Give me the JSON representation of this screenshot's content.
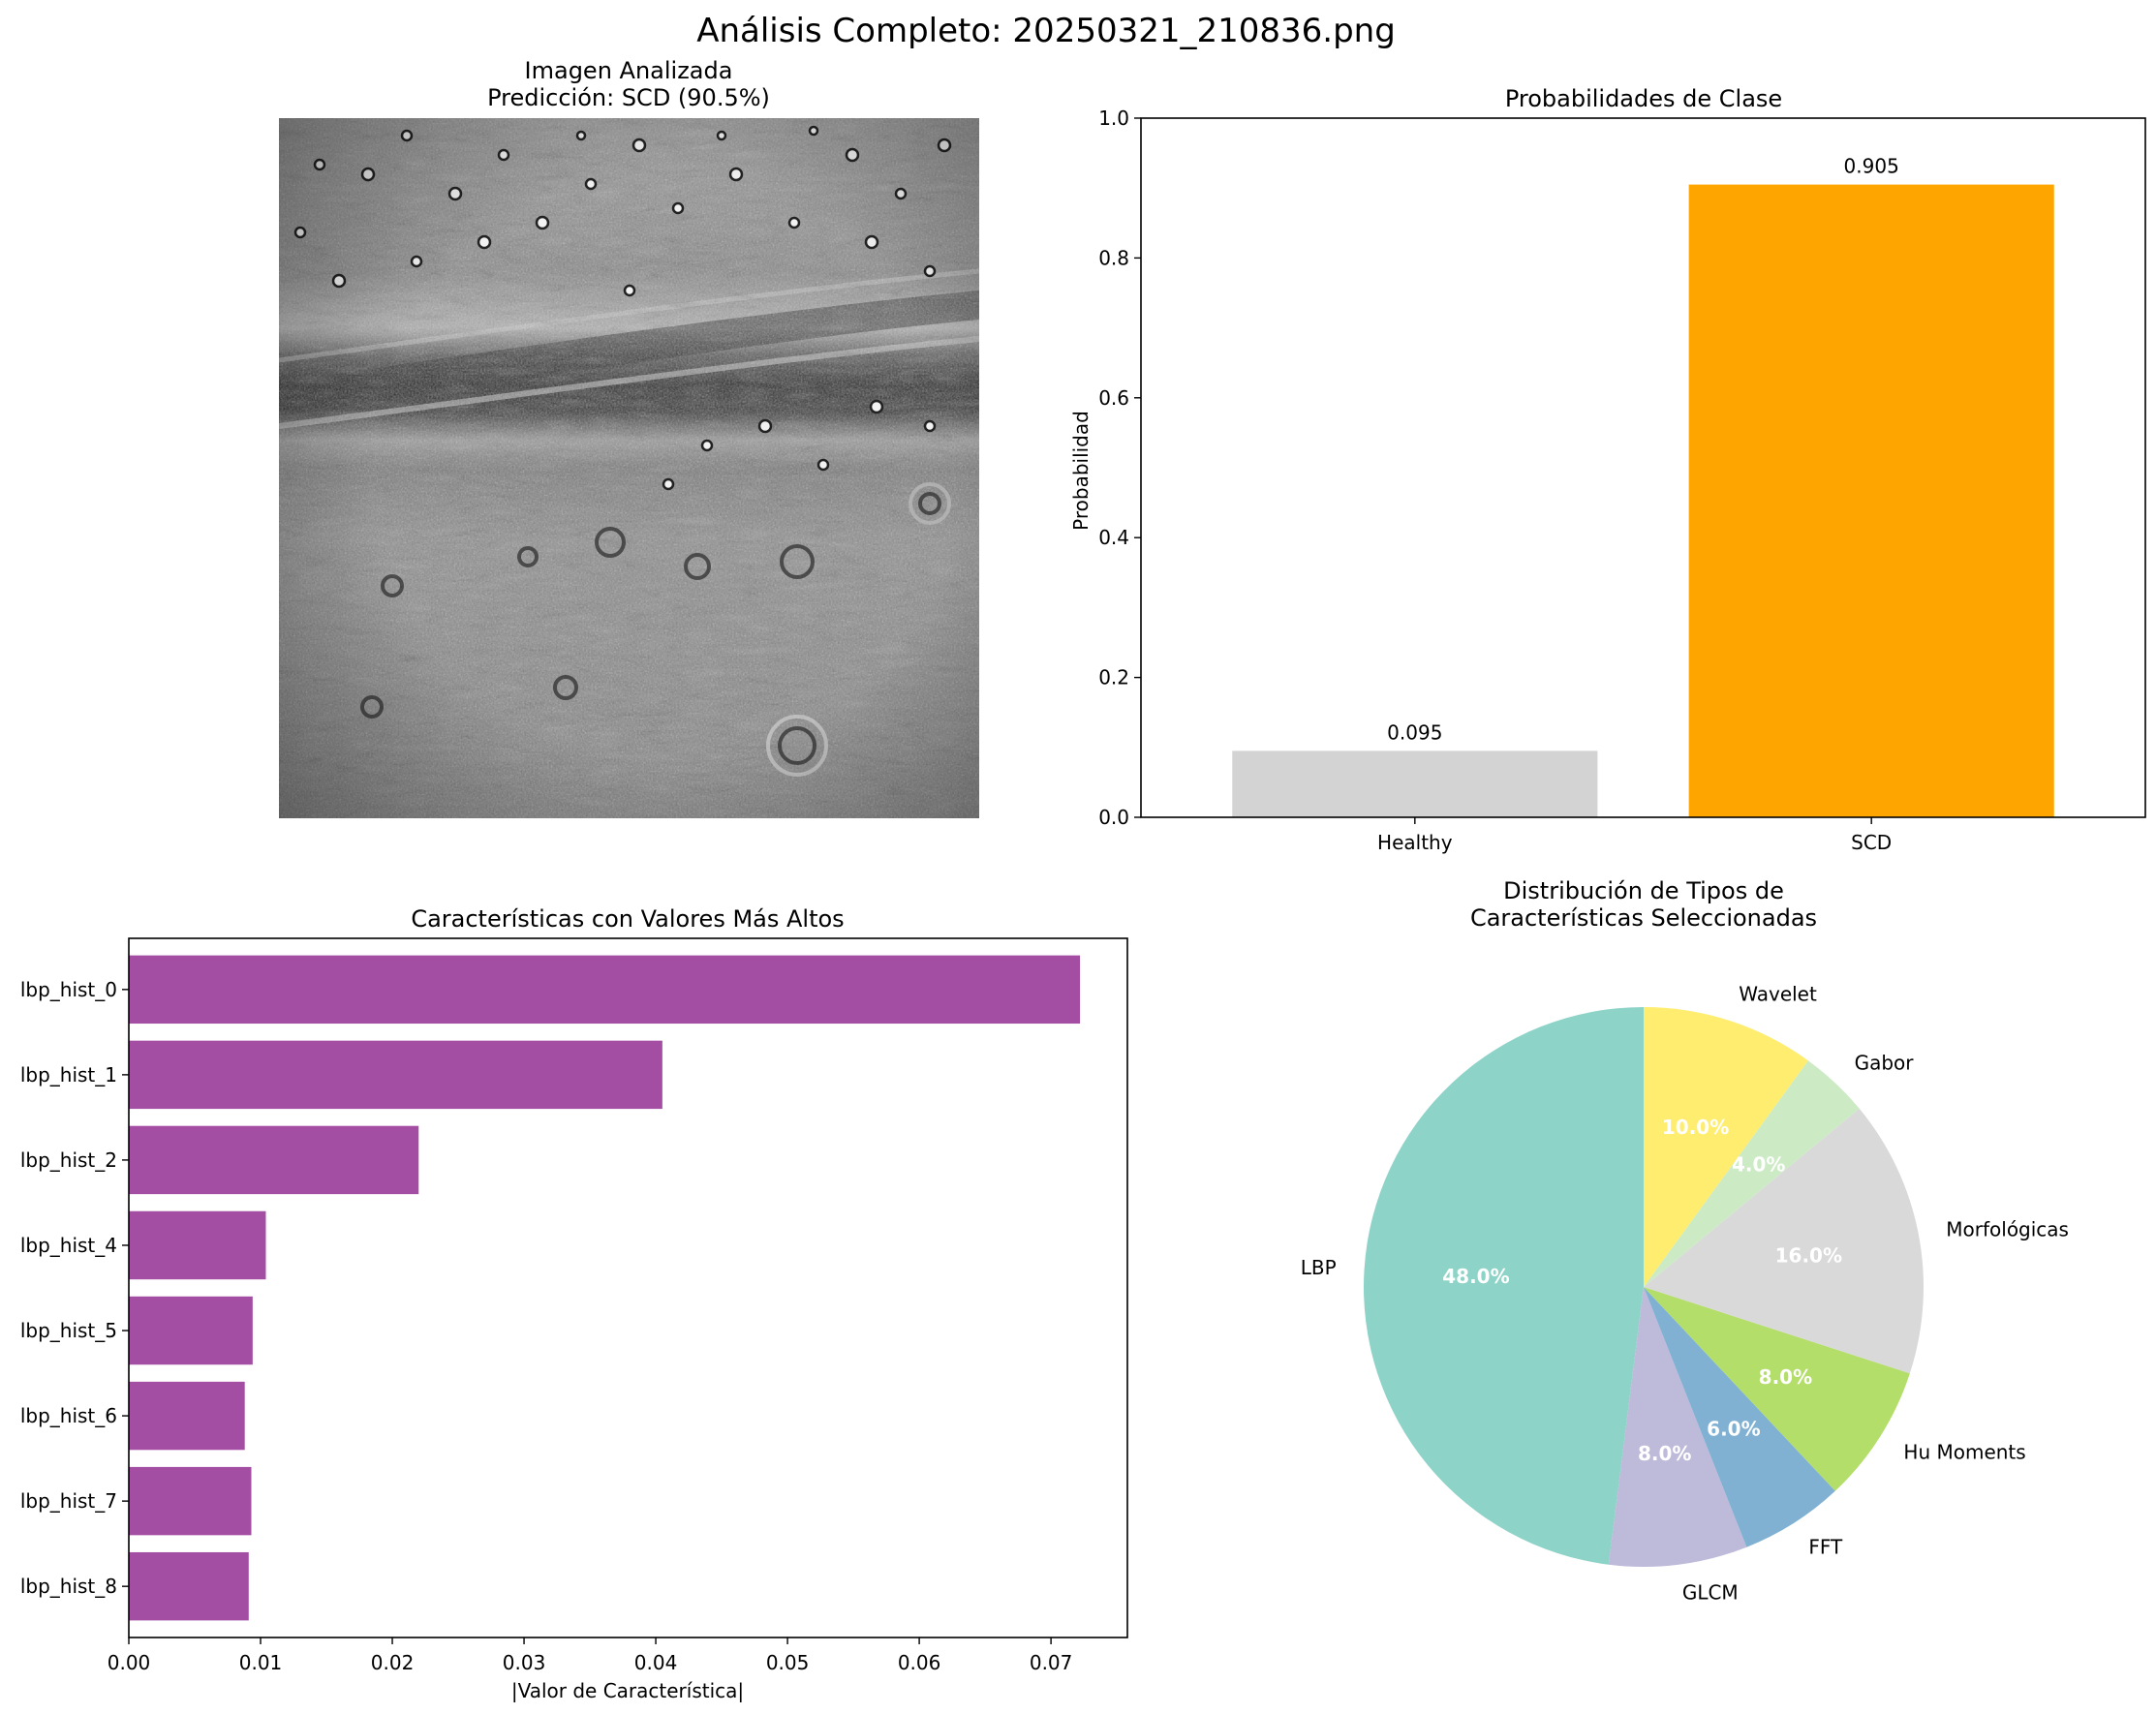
{
  "figure": {
    "suptitle": "Análisis Completo: 20250321_210836.png"
  },
  "image_panel": {
    "title_line1": "Imagen Analizada",
    "title_line2": "Predicción: SCD (90.5%)"
  },
  "chart_data": [
    {
      "type": "bar",
      "title": "Probabilidades de Clase",
      "categories": [
        "Healthy",
        "SCD"
      ],
      "values": [
        0.095,
        0.905
      ],
      "value_labels": [
        "0.095",
        "0.905"
      ],
      "colors": [
        "#d3d3d3",
        "#ffa500"
      ],
      "xlabel": "",
      "ylabel": "Probabilidad",
      "ylim": [
        0,
        1.0
      ],
      "yticks": [
        0.0,
        0.2,
        0.4,
        0.6,
        0.8,
        1.0
      ],
      "ytick_labels": [
        "0.0",
        "0.2",
        "0.4",
        "0.6",
        "0.8",
        "1.0"
      ],
      "grid": false
    },
    {
      "type": "barh",
      "title": "Características con Valores Más Altos",
      "categories": [
        "lbp_hist_0",
        "lbp_hist_1",
        "lbp_hist_2",
        "lbp_hist_4",
        "lbp_hist_5",
        "lbp_hist_6",
        "lbp_hist_7",
        "lbp_hist_8"
      ],
      "values": [
        0.0722,
        0.0405,
        0.022,
        0.0104,
        0.0094,
        0.0088,
        0.0093,
        0.0091
      ],
      "color": "#a34da3",
      "xlabel": "|Valor de Característica|",
      "ylabel": "",
      "xlim": [
        0,
        0.0758
      ],
      "xticks": [
        0.0,
        0.01,
        0.02,
        0.03,
        0.04,
        0.05,
        0.06,
        0.07
      ],
      "xtick_labels": [
        "0.00",
        "0.01",
        "0.02",
        "0.03",
        "0.04",
        "0.05",
        "0.06",
        "0.07"
      ],
      "grid": false
    },
    {
      "type": "pie",
      "title_line1": "Distribución de Tipos de",
      "title_line2": "Características Seleccionadas",
      "start_angle_deg": 90,
      "direction": "counterclockwise",
      "slices": [
        {
          "label": "LBP",
          "value": 48.0,
          "pct_label": "48.0%",
          "color": "#8dd3c7"
        },
        {
          "label": "GLCM",
          "value": 8.0,
          "pct_label": "8.0%",
          "color": "#bebada"
        },
        {
          "label": "FFT",
          "value": 6.0,
          "pct_label": "6.0%",
          "color": "#80b1d3"
        },
        {
          "label": "Hu Moments",
          "value": 8.0,
          "pct_label": "8.0%",
          "color": "#b3de69"
        },
        {
          "label": "Morfológicas",
          "value": 16.0,
          "pct_label": "16.0%",
          "color": "#d9d9d9"
        },
        {
          "label": "Gabor",
          "value": 4.0,
          "pct_label": "4.0%",
          "color": "#ccebc5"
        },
        {
          "label": "Wavelet",
          "value": 10.0,
          "pct_label": "10.0%",
          "color": "#ffed6f"
        }
      ]
    }
  ]
}
